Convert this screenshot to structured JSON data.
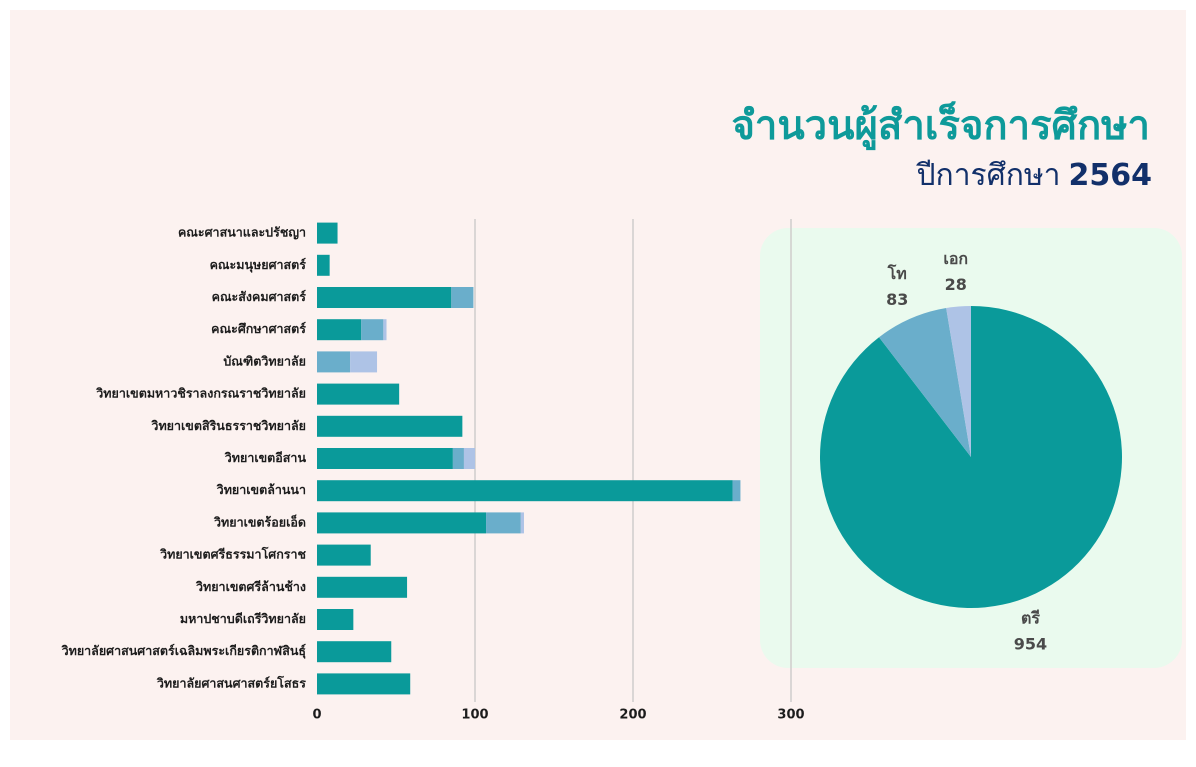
{
  "header": {
    "title": "จำนวนผู้สำเร็จการศึกษา",
    "subtitle": "ปีการศึกษา",
    "year": "2564"
  },
  "chart_data": [
    {
      "type": "stacked-barh",
      "categories": [
        "คณะศาสนาและปรัชญา",
        "คณะมนุษยศาสตร์",
        "คณะสังคมศาสตร์",
        "คณะศึกษาศาสตร์",
        "บัณฑิตวิทยาลัย",
        "วิทยาเขตมหาวชิราลงกรณราชวิทยาลัย",
        "วิทยาเขตสิรินธรราชวิทยาลัย",
        "วิทยาเขตอีสาน",
        "วิทยาเขตล้านนา",
        "วิทยาเขตร้อยเอ็ด",
        "วิทยาเขตศรีธรรมาโศกราช",
        "วิทยาเขตศรีล้านช้าง",
        "มหาปชาบดีเถรีวิทยาลัย",
        "วิทยาลัยศาสนศาสตร์เฉลิมพระเกียรติกาฬสินธุ์",
        "วิทยาลัยศาสนศาสตร์ยโสธร"
      ],
      "series": [
        {
          "color": "#0a9a9a",
          "values": [
            13,
            8,
            85,
            28,
            0,
            52,
            92,
            86,
            263,
            107,
            34,
            57,
            23,
            47,
            59
          ]
        },
        {
          "color": "#6aaecb",
          "values": [
            0,
            0,
            14,
            14,
            21,
            0,
            0,
            7,
            5,
            22,
            0,
            0,
            0,
            0,
            0
          ]
        },
        {
          "color": "#aec3e6",
          "values": [
            0,
            0,
            0,
            2,
            17,
            0,
            0,
            7,
            0,
            2,
            0,
            0,
            0,
            0,
            0
          ]
        }
      ],
      "xlim": [
        0,
        300
      ],
      "xticks": [
        0,
        100,
        200,
        300
      ],
      "grid": true
    },
    {
      "type": "pie",
      "categories": [
        "ตรี",
        "โท",
        "เอก"
      ],
      "values": [
        954,
        83,
        28
      ],
      "colors": [
        "#0a9a9a",
        "#6aaecb",
        "#aec3e6"
      ]
    }
  ]
}
